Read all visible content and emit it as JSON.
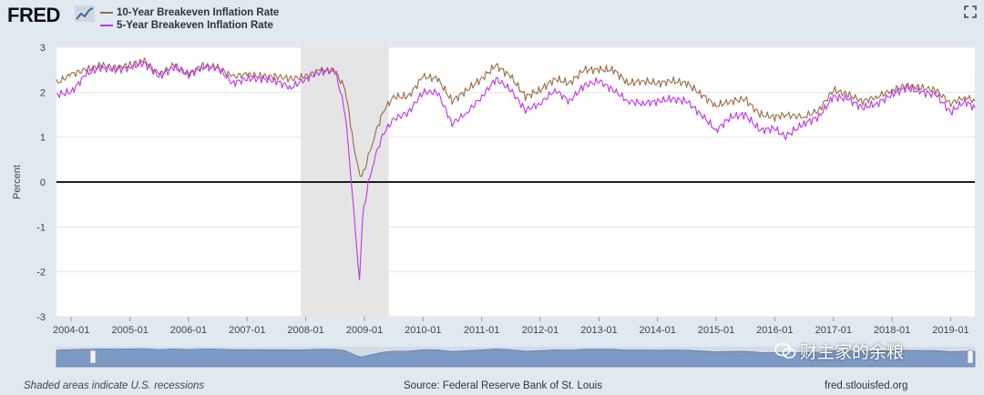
{
  "header": {
    "logo_text": "FRED",
    "legend": [
      {
        "label": "10-Year Breakeven Inflation Rate",
        "color": "#9b6b43"
      },
      {
        "label": "5-Year Breakeven Inflation Rate",
        "color": "#c234e8"
      }
    ]
  },
  "footer": {
    "note": "Shaded areas indicate U.S. recessions",
    "source": "Source: Federal Reserve Bank of St. Louis",
    "site": "fred.stlouisfed.org"
  },
  "watermark": {
    "text": "财主家的余粮"
  },
  "colors": {
    "recession": "#e5e5e5",
    "zero_line": "#000000",
    "navigator_fill": "#7d9ac4"
  },
  "chart_data": {
    "type": "line",
    "ylabel": "Percent",
    "ylim": [
      -3,
      3
    ],
    "yticks": [
      -3,
      -2,
      -1,
      0,
      1,
      2,
      3
    ],
    "xlim": [
      "2003-10-01",
      "2019-06-01"
    ],
    "xticks": [
      "2004-01",
      "2005-01",
      "2006-01",
      "2007-01",
      "2008-01",
      "2009-01",
      "2010-01",
      "2011-01",
      "2012-01",
      "2013-01",
      "2014-01",
      "2015-01",
      "2016-01",
      "2017-01",
      "2018-01",
      "2019-01"
    ],
    "recession": {
      "start": "2007-12-01",
      "end": "2009-06-01"
    },
    "reference_line": 0,
    "series": [
      {
        "name": "10-Year Breakeven Inflation Rate",
        "color": "#9b6b43",
        "points": [
          [
            "2003-10-01",
            2.2
          ],
          [
            "2004-01-01",
            2.4
          ],
          [
            "2004-04-01",
            2.5
          ],
          [
            "2004-07-01",
            2.6
          ],
          [
            "2004-10-01",
            2.55
          ],
          [
            "2005-01-01",
            2.6
          ],
          [
            "2005-04-01",
            2.7
          ],
          [
            "2005-07-01",
            2.4
          ],
          [
            "2005-10-01",
            2.6
          ],
          [
            "2006-01-01",
            2.4
          ],
          [
            "2006-04-01",
            2.6
          ],
          [
            "2006-07-01",
            2.55
          ],
          [
            "2006-10-01",
            2.35
          ],
          [
            "2007-01-01",
            2.4
          ],
          [
            "2007-04-01",
            2.35
          ],
          [
            "2007-07-01",
            2.35
          ],
          [
            "2007-10-01",
            2.3
          ],
          [
            "2008-01-01",
            2.35
          ],
          [
            "2008-04-01",
            2.5
          ],
          [
            "2008-07-01",
            2.45
          ],
          [
            "2008-09-01",
            2.1
          ],
          [
            "2008-10-15",
            1.1
          ],
          [
            "2008-11-15",
            0.4
          ],
          [
            "2008-12-15",
            0.1
          ],
          [
            "2009-01-15",
            0.45
          ],
          [
            "2009-03-01",
            1.0
          ],
          [
            "2009-05-01",
            1.6
          ],
          [
            "2009-07-01",
            1.9
          ],
          [
            "2009-10-01",
            1.9
          ],
          [
            "2010-01-01",
            2.35
          ],
          [
            "2010-04-01",
            2.3
          ],
          [
            "2010-07-01",
            1.8
          ],
          [
            "2010-10-01",
            2.05
          ],
          [
            "2011-01-01",
            2.3
          ],
          [
            "2011-04-01",
            2.6
          ],
          [
            "2011-07-01",
            2.35
          ],
          [
            "2011-10-01",
            1.9
          ],
          [
            "2012-01-01",
            2.05
          ],
          [
            "2012-04-01",
            2.3
          ],
          [
            "2012-07-01",
            2.2
          ],
          [
            "2012-10-01",
            2.5
          ],
          [
            "2013-01-01",
            2.5
          ],
          [
            "2013-04-01",
            2.5
          ],
          [
            "2013-07-01",
            2.2
          ],
          [
            "2013-10-01",
            2.25
          ],
          [
            "2014-01-01",
            2.2
          ],
          [
            "2014-04-01",
            2.25
          ],
          [
            "2014-07-01",
            2.2
          ],
          [
            "2014-10-01",
            1.95
          ],
          [
            "2015-01-01",
            1.7
          ],
          [
            "2015-04-01",
            1.8
          ],
          [
            "2015-07-01",
            1.85
          ],
          [
            "2015-10-01",
            1.5
          ],
          [
            "2016-01-01",
            1.45
          ],
          [
            "2016-03-01",
            1.5
          ],
          [
            "2016-07-01",
            1.45
          ],
          [
            "2016-10-01",
            1.6
          ],
          [
            "2017-01-01",
            2.05
          ],
          [
            "2017-04-01",
            1.95
          ],
          [
            "2017-07-01",
            1.8
          ],
          [
            "2017-10-01",
            1.9
          ],
          [
            "2018-01-01",
            2.05
          ],
          [
            "2018-04-01",
            2.15
          ],
          [
            "2018-07-01",
            2.1
          ],
          [
            "2018-10-01",
            2.05
          ],
          [
            "2019-01-01",
            1.75
          ],
          [
            "2019-04-01",
            1.9
          ],
          [
            "2019-06-01",
            1.8
          ]
        ]
      },
      {
        "name": "5-Year Breakeven Inflation Rate",
        "color": "#c234e8",
        "points": [
          [
            "2003-10-01",
            1.95
          ],
          [
            "2004-01-01",
            2.0
          ],
          [
            "2004-04-01",
            2.4
          ],
          [
            "2004-07-01",
            2.55
          ],
          [
            "2004-10-01",
            2.5
          ],
          [
            "2005-01-01",
            2.55
          ],
          [
            "2005-04-01",
            2.65
          ],
          [
            "2005-07-01",
            2.35
          ],
          [
            "2005-10-01",
            2.55
          ],
          [
            "2006-01-01",
            2.4
          ],
          [
            "2006-04-01",
            2.55
          ],
          [
            "2006-07-01",
            2.55
          ],
          [
            "2006-10-01",
            2.2
          ],
          [
            "2007-01-01",
            2.3
          ],
          [
            "2007-04-01",
            2.3
          ],
          [
            "2007-07-01",
            2.25
          ],
          [
            "2007-10-01",
            2.1
          ],
          [
            "2008-01-01",
            2.3
          ],
          [
            "2008-04-01",
            2.45
          ],
          [
            "2008-07-01",
            2.5
          ],
          [
            "2008-09-01",
            1.6
          ],
          [
            "2008-10-15",
            -0.1
          ],
          [
            "2008-11-01",
            -0.9
          ],
          [
            "2008-12-01",
            -2.2
          ],
          [
            "2008-12-20",
            -0.8
          ],
          [
            "2009-01-15",
            -0.2
          ],
          [
            "2009-03-01",
            0.5
          ],
          [
            "2009-05-01",
            1.1
          ],
          [
            "2009-07-01",
            1.4
          ],
          [
            "2009-10-01",
            1.55
          ],
          [
            "2010-01-01",
            2.0
          ],
          [
            "2010-04-01",
            2.0
          ],
          [
            "2010-07-01",
            1.3
          ],
          [
            "2010-10-01",
            1.55
          ],
          [
            "2011-01-01",
            1.9
          ],
          [
            "2011-04-01",
            2.3
          ],
          [
            "2011-07-01",
            2.05
          ],
          [
            "2011-10-01",
            1.6
          ],
          [
            "2012-01-01",
            1.75
          ],
          [
            "2012-04-01",
            2.05
          ],
          [
            "2012-07-01",
            1.8
          ],
          [
            "2012-10-01",
            2.15
          ],
          [
            "2013-01-01",
            2.25
          ],
          [
            "2013-04-01",
            2.05
          ],
          [
            "2013-07-01",
            1.8
          ],
          [
            "2013-10-01",
            1.75
          ],
          [
            "2014-01-01",
            1.8
          ],
          [
            "2014-04-01",
            1.85
          ],
          [
            "2014-07-01",
            1.8
          ],
          [
            "2014-10-01",
            1.5
          ],
          [
            "2015-01-01",
            1.15
          ],
          [
            "2015-04-01",
            1.45
          ],
          [
            "2015-07-01",
            1.5
          ],
          [
            "2015-10-01",
            1.15
          ],
          [
            "2016-01-01",
            1.2
          ],
          [
            "2016-03-01",
            1.0
          ],
          [
            "2016-07-01",
            1.3
          ],
          [
            "2016-10-01",
            1.45
          ],
          [
            "2017-01-01",
            1.9
          ],
          [
            "2017-04-01",
            1.85
          ],
          [
            "2017-07-01",
            1.65
          ],
          [
            "2017-10-01",
            1.75
          ],
          [
            "2018-01-01",
            1.95
          ],
          [
            "2018-04-01",
            2.1
          ],
          [
            "2018-07-01",
            2.0
          ],
          [
            "2018-10-01",
            1.95
          ],
          [
            "2019-01-01",
            1.55
          ],
          [
            "2019-04-01",
            1.8
          ],
          [
            "2019-06-01",
            1.65
          ]
        ]
      }
    ]
  }
}
